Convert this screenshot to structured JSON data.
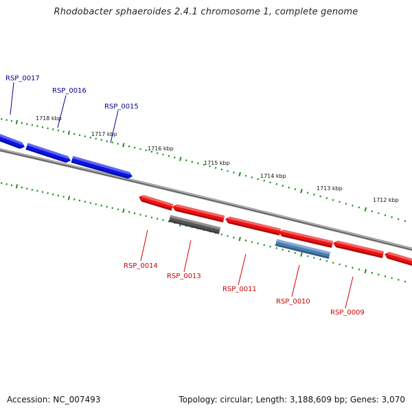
{
  "title": "Rhodobacter sphaeroides 2.4.1 chromosome 1, complete genome",
  "footer": {
    "accession": "Accession: NC_007493",
    "topology": "Topology: circular; Length: 3,188,609 bp; Genes: 3,070"
  },
  "colors": {
    "forward_gene": "#0a14e8",
    "reverse_gene": "#ee1111",
    "pseudogene": "#555555",
    "rna_gene": "#4a7fb5",
    "backbone": "#888888",
    "tick": "#1a8a1a",
    "forward_label": "#00008b",
    "reverse_label": "#cc0000"
  },
  "scale_labels": [
    {
      "text": "1718 kbp",
      "kb": 1718
    },
    {
      "text": "1717 kbp",
      "kb": 1717
    },
    {
      "text": "1716 kbp",
      "kb": 1716
    },
    {
      "text": "1715 kbp",
      "kb": 1715
    },
    {
      "text": "1714 kbp",
      "kb": 1714
    },
    {
      "text": "1713 kbp",
      "kb": 1713
    },
    {
      "text": "1712 kbp",
      "kb": 1712
    }
  ],
  "genes": [
    {
      "id": "RSP_0017",
      "strand": "+",
      "type": "protein",
      "label": "RSP_0017"
    },
    {
      "id": "RSP_0016",
      "strand": "+",
      "type": "protein",
      "label": "RSP_0016"
    },
    {
      "id": "RSP_0015",
      "strand": "+",
      "type": "protein",
      "label": "RSP_0015"
    },
    {
      "id": "RSP_0014",
      "strand": "-",
      "type": "protein",
      "label": "RSP_0014"
    },
    {
      "id": "RSP_0013",
      "strand": "-",
      "type": "pseudo",
      "label": "RSP_0013"
    },
    {
      "id": "RSP_0012",
      "strand": "-",
      "type": "protein",
      "label": ""
    },
    {
      "id": "RSP_0011",
      "strand": "-",
      "type": "protein",
      "label": "RSP_0011"
    },
    {
      "id": "RSP_0010a",
      "strand": "-",
      "type": "protein",
      "label": ""
    },
    {
      "id": "RSP_0010",
      "strand": "-",
      "type": "rna",
      "label": "RSP_0010"
    },
    {
      "id": "RSP_0009",
      "strand": "-",
      "type": "protein",
      "label": "RSP_0009"
    },
    {
      "id": "RSP_0008",
      "strand": "-",
      "type": "protein",
      "label": ""
    }
  ]
}
